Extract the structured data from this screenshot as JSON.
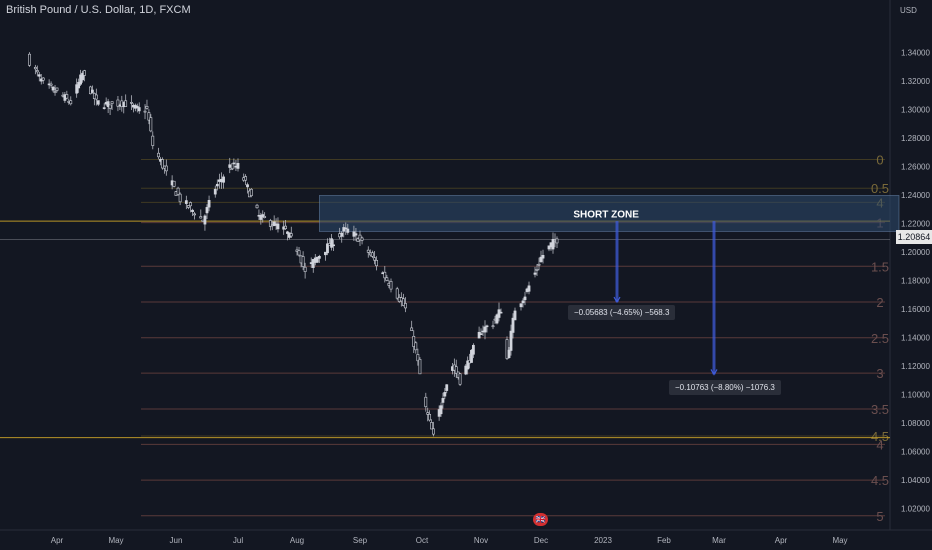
{
  "title": "British Pound / U.S. Dollar, 1D, FXCM",
  "current_price": "1.20864",
  "flag_icon": "uk-flag-icon",
  "chart_data": {
    "type": "candlestick",
    "symbol": "GBP/USD",
    "currency_label": "USD",
    "y_ticks": [
      "1.34000",
      "1.32000",
      "1.30000",
      "1.28000",
      "1.26000",
      "1.24000",
      "1.22000",
      "1.20000",
      "1.18000",
      "1.16000",
      "1.14000",
      "1.12000",
      "1.10000",
      "1.08000",
      "1.06000",
      "1.04000",
      "1.02000"
    ],
    "ylim": [
      1.012,
      1.352
    ],
    "x_ticks": [
      "Apr",
      "May",
      "Jun",
      "Jul",
      "Aug",
      "Sep",
      "Oct",
      "Nov",
      "Dec",
      "2023",
      "Feb",
      "Mar",
      "Apr",
      "May"
    ],
    "close_path": [
      {
        "date": "2022-03-18",
        "value": 1.334
      },
      {
        "date": "2022-03-25",
        "value": 1.318
      },
      {
        "date": "2022-04-01",
        "value": 1.312
      },
      {
        "date": "2022-04-08",
        "value": 1.305
      },
      {
        "date": "2022-04-14",
        "value": 1.325
      },
      {
        "date": "2022-04-21",
        "value": 1.305
      },
      {
        "date": "2022-04-28",
        "value": 1.303
      },
      {
        "date": "2022-05-05",
        "value": 1.305
      },
      {
        "date": "2022-05-12",
        "value": 1.3
      },
      {
        "date": "2022-05-17",
        "value": 1.3
      },
      {
        "date": "2022-05-20",
        "value": 1.275
      },
      {
        "date": "2022-05-27",
        "value": 1.255
      },
      {
        "date": "2022-06-03",
        "value": 1.237
      },
      {
        "date": "2022-06-10",
        "value": 1.228
      },
      {
        "date": "2022-06-14",
        "value": 1.222
      },
      {
        "date": "2022-06-20",
        "value": 1.245
      },
      {
        "date": "2022-06-27",
        "value": 1.26
      },
      {
        "date": "2022-07-01",
        "value": 1.26
      },
      {
        "date": "2022-07-06",
        "value": 1.245
      },
      {
        "date": "2022-07-12",
        "value": 1.225
      },
      {
        "date": "2022-07-19",
        "value": 1.22
      },
      {
        "date": "2022-07-26",
        "value": 1.215
      },
      {
        "date": "2022-08-02",
        "value": 1.2
      },
      {
        "date": "2022-08-05",
        "value": 1.185
      },
      {
        "date": "2022-08-10",
        "value": 1.195
      },
      {
        "date": "2022-08-17",
        "value": 1.205
      },
      {
        "date": "2022-08-24",
        "value": 1.215
      },
      {
        "date": "2022-08-26",
        "value": 1.215
      },
      {
        "date": "2022-08-31",
        "value": 1.21
      },
      {
        "date": "2022-09-05",
        "value": 1.2
      },
      {
        "date": "2022-09-12",
        "value": 1.185
      },
      {
        "date": "2022-09-19",
        "value": 1.17
      },
      {
        "date": "2022-09-23",
        "value": 1.16
      },
      {
        "date": "2022-09-28",
        "value": 1.13
      },
      {
        "date": "2022-10-03",
        "value": 1.09
      },
      {
        "date": "2022-10-07",
        "value": 1.07
      },
      {
        "date": "2022-10-12",
        "value": 1.1
      },
      {
        "date": "2022-10-17",
        "value": 1.12
      },
      {
        "date": "2022-10-21",
        "value": 1.11
      },
      {
        "date": "2022-10-26",
        "value": 1.125
      },
      {
        "date": "2022-11-01",
        "value": 1.145
      },
      {
        "date": "2022-11-07",
        "value": 1.15
      },
      {
        "date": "2022-11-11",
        "value": 1.16
      },
      {
        "date": "2022-11-14",
        "value": 1.125
      },
      {
        "date": "2022-11-18",
        "value": 1.16
      },
      {
        "date": "2022-11-23",
        "value": 1.17
      },
      {
        "date": "2022-11-28",
        "value": 1.185
      },
      {
        "date": "2022-12-01",
        "value": 1.196
      },
      {
        "date": "2022-12-06",
        "value": 1.205
      },
      {
        "date": "2022-12-09",
        "value": 1.209
      }
    ],
    "fib_levels": [
      {
        "label": "0",
        "price": 1.26493
      },
      {
        "label": "0.5",
        "price": 1.24475
      },
      {
        "label": "1",
        "price": 1.22062
      },
      {
        "label": "1.5",
        "price": 1.18997
      },
      {
        "label": "2",
        "price": 1.16492
      },
      {
        "label": "2.5",
        "price": 1.13982
      },
      {
        "label": "3",
        "price": 1.11497
      },
      {
        "label": "3.5",
        "price": 1.08986
      },
      {
        "label": "4",
        "price": 1.06504
      },
      {
        "label": "4.5",
        "price": 1.03992
      },
      {
        "label": "5",
        "price": 1.0149
      },
      {
        "label": "4",
        "price": 1.23481
      },
      {
        "label": "4.5",
        "price": 1.07089
      }
    ],
    "horizontal_lines": [
      {
        "price": 1.2217,
        "color": "#c9a227"
      },
      {
        "price": 1.0697,
        "color": "#c9a227"
      },
      {
        "price": 1.20864,
        "color": "#b2b5be"
      }
    ],
    "short_zone": {
      "label": "SHORT ZONE",
      "top": 1.2397,
      "bottom": 1.2144,
      "start": "2022-08-12",
      "end": "2023-05-31"
    },
    "measurements": [
      {
        "label": "−0.05683 (−4.65%) −568.3",
        "from": 1.2217,
        "to": 1.1649
      },
      {
        "label": "−0.10763 (−8.80%) −1076.3",
        "from": 1.2217,
        "to": 1.1141
      }
    ]
  },
  "colors": {
    "background": "#131722",
    "up": "#d1d4dc",
    "down": "#d1d4dc",
    "fib_line": "#5a3a3a",
    "fib_label": "#6b4f4f",
    "gold": "#c9a227",
    "zone": "#2e4a6d",
    "arrow": "#3f5bd9"
  }
}
